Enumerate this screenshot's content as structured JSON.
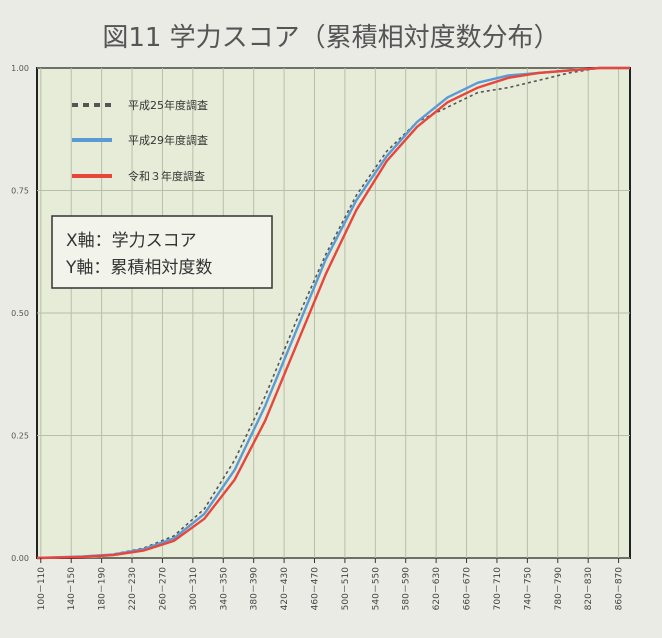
{
  "chart_data": {
    "type": "line",
    "title": "図11 学力スコア（累積相対度数分布）",
    "annotation": [
      "X軸：学力スコア",
      "Y軸：累積相対度数"
    ],
    "categories": [
      "100－110",
      "140－150",
      "180－190",
      "220－230",
      "260－270",
      "300－310",
      "340－350",
      "380－390",
      "420－430",
      "460－470",
      "500－510",
      "540－550",
      "580－590",
      "620－630",
      "660－670",
      "700－710",
      "740－750",
      "780－790",
      "820－830",
      "860－870"
    ],
    "y_ticks": [
      "0.00",
      "0.25",
      "0.50",
      "0.75",
      "1.00"
    ],
    "ylim": [
      0,
      1
    ],
    "grid": true,
    "legend_position": "top-left",
    "background_color": "#e6ecd8",
    "series": [
      {
        "name": "平成25年度調査",
        "color": "#555555",
        "style": "dotted",
        "points": [
          [
            100,
            0
          ],
          [
            160,
            0.003
          ],
          [
            200,
            0.008
          ],
          [
            240,
            0.02
          ],
          [
            280,
            0.045
          ],
          [
            320,
            0.1
          ],
          [
            360,
            0.2
          ],
          [
            400,
            0.33
          ],
          [
            440,
            0.48
          ],
          [
            480,
            0.62
          ],
          [
            520,
            0.74
          ],
          [
            560,
            0.83
          ],
          [
            600,
            0.89
          ],
          [
            640,
            0.92
          ],
          [
            680,
            0.95
          ],
          [
            720,
            0.96
          ],
          [
            760,
            0.975
          ],
          [
            800,
            0.99
          ],
          [
            840,
            1.0
          ],
          [
            880,
            1.0
          ]
        ]
      },
      {
        "name": "平成29年度調査",
        "color": "#5b9bd5",
        "style": "solid",
        "points": [
          [
            100,
            0
          ],
          [
            160,
            0.003
          ],
          [
            200,
            0.007
          ],
          [
            240,
            0.018
          ],
          [
            280,
            0.04
          ],
          [
            320,
            0.09
          ],
          [
            360,
            0.18
          ],
          [
            400,
            0.31
          ],
          [
            440,
            0.46
          ],
          [
            480,
            0.61
          ],
          [
            520,
            0.73
          ],
          [
            560,
            0.82
          ],
          [
            600,
            0.89
          ],
          [
            640,
            0.94
          ],
          [
            680,
            0.97
          ],
          [
            720,
            0.985
          ],
          [
            760,
            0.99
          ],
          [
            800,
            0.995
          ],
          [
            840,
            1.0
          ],
          [
            880,
            1.0
          ]
        ]
      },
      {
        "name": "令和３年度調査",
        "color": "#e8463c",
        "style": "solid",
        "points": [
          [
            100,
            0
          ],
          [
            160,
            0.002
          ],
          [
            200,
            0.006
          ],
          [
            240,
            0.015
          ],
          [
            280,
            0.035
          ],
          [
            320,
            0.08
          ],
          [
            360,
            0.16
          ],
          [
            400,
            0.28
          ],
          [
            440,
            0.43
          ],
          [
            480,
            0.58
          ],
          [
            520,
            0.71
          ],
          [
            560,
            0.81
          ],
          [
            600,
            0.88
          ],
          [
            640,
            0.93
          ],
          [
            680,
            0.96
          ],
          [
            720,
            0.98
          ],
          [
            760,
            0.99
          ],
          [
            800,
            0.995
          ],
          [
            840,
            1.0
          ],
          [
            880,
            1.0
          ]
        ]
      }
    ]
  }
}
